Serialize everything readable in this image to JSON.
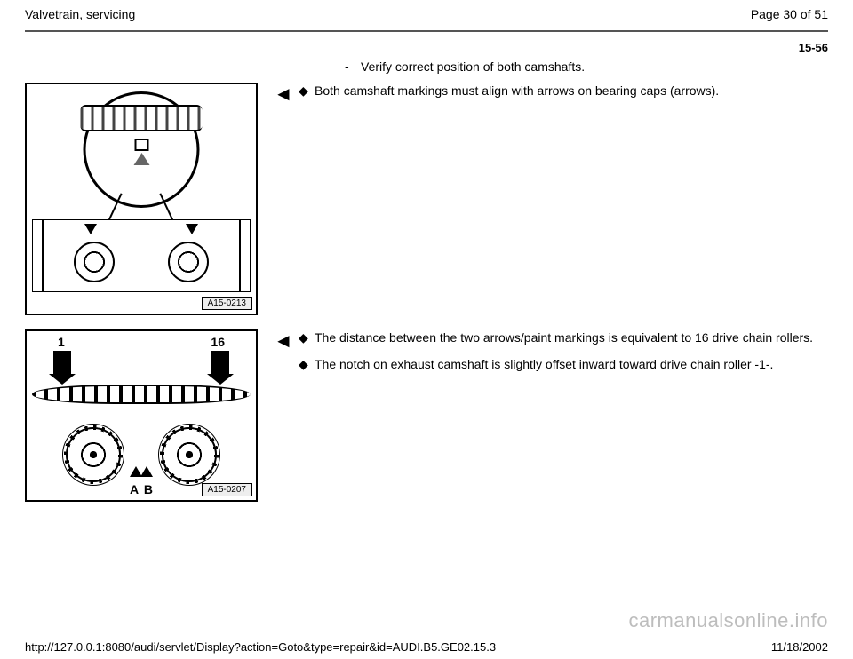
{
  "header": {
    "title": "Valvetrain, servicing",
    "page_indicator": "Page 30 of 51"
  },
  "section_number": "15-56",
  "intro": {
    "dash": "-",
    "text": "Verify correct position of both camshafts."
  },
  "indicator_glyph": "◄",
  "block1": {
    "bullets": [
      "Both camshaft markings must align with arrows on bearing caps (arrows)."
    ],
    "figure_label": "A15-0213"
  },
  "block2": {
    "bullets": [
      "The distance between the two arrows/paint markings is equivalent to 16 drive chain rollers.",
      "The notch on exhaust camshaft is slightly offset inward toward drive chain roller -1-."
    ],
    "figure_label": "A15-0207",
    "callouts": {
      "n1": "1",
      "n16": "16",
      "A": "A",
      "B": "B"
    }
  },
  "footer": {
    "url": "http://127.0.0.1:8080/audi/servlet/Display?action=Goto&type=repair&id=AUDI.B5.GE02.15.3",
    "date": "11/18/2002"
  },
  "watermark": "carmanualsonline.info",
  "bullet_marker": "◆"
}
